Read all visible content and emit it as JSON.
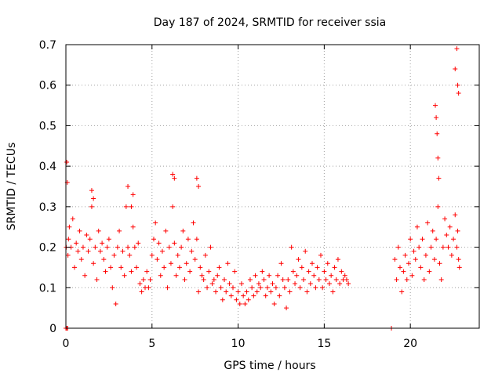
{
  "chart_data": {
    "type": "scatter",
    "title": "Day 187 of 2024, SRMTID for receiver ssia",
    "xlabel": "GPS time / hours",
    "ylabel": "SRMTID / TECUs",
    "xlim": [
      0,
      24
    ],
    "ylim": [
      0,
      0.7
    ],
    "xticks": [
      0,
      5,
      10,
      15,
      20
    ],
    "xtick_labels": [
      "0",
      "5",
      "10",
      "15",
      "20"
    ],
    "yticks": [
      0,
      0.1,
      0.2,
      0.3,
      0.4,
      0.5,
      0.6,
      0.7
    ],
    "ytick_labels": [
      "0",
      "0.1",
      "0.2",
      "0.3",
      "0.4",
      "0.5",
      "0.6",
      "0.7"
    ],
    "grid": true,
    "marker": "+",
    "color": "#ff0000",
    "series": [
      {
        "name": "SRMTID",
        "x": [
          0.02,
          0.05,
          0.08,
          0.12,
          0.15,
          0.2,
          0.3,
          0.4,
          0.5,
          0.6,
          0.7,
          0.8,
          0.9,
          1.0,
          1.1,
          1.2,
          1.3,
          1.4,
          1.5,
          1.6,
          1.7,
          1.8,
          1.9,
          2.0,
          2.1,
          2.2,
          2.3,
          2.4,
          2.5,
          2.6,
          2.7,
          2.8,
          2.9,
          3.0,
          3.1,
          3.2,
          3.3,
          3.4,
          3.5,
          3.6,
          3.7,
          3.8,
          3.9,
          4.0,
          4.1,
          4.2,
          4.3,
          4.4,
          4.5,
          4.6,
          4.7,
          4.8,
          4.9,
          5.0,
          5.1,
          5.2,
          5.3,
          5.4,
          5.5,
          5.6,
          5.7,
          5.8,
          5.9,
          6.0,
          6.1,
          6.2,
          6.3,
          6.4,
          6.5,
          6.6,
          6.7,
          6.8,
          6.9,
          7.0,
          7.1,
          7.2,
          7.3,
          7.4,
          7.5,
          7.6,
          7.7,
          7.8,
          7.9,
          8.0,
          8.1,
          8.2,
          8.3,
          8.4,
          8.5,
          8.6,
          8.7,
          8.8,
          8.9,
          9.0,
          9.1,
          9.2,
          9.3,
          9.4,
          9.5,
          9.6,
          9.7,
          9.8,
          9.9,
          10.0,
          10.1,
          10.2,
          10.3,
          10.4,
          10.5,
          10.6,
          10.7,
          10.8,
          10.9,
          11.0,
          11.1,
          11.2,
          11.3,
          11.4,
          11.5,
          11.6,
          11.7,
          11.8,
          11.9,
          12.0,
          12.1,
          12.2,
          12.3,
          12.4,
          12.5,
          12.6,
          12.7,
          12.8,
          12.9,
          13.0,
          13.1,
          13.2,
          13.3,
          13.4,
          13.5,
          13.6,
          13.7,
          13.8,
          13.9,
          14.0,
          14.1,
          14.2,
          14.3,
          14.4,
          14.5,
          14.6,
          14.7,
          14.8,
          14.9,
          15.0,
          15.1,
          15.2,
          15.3,
          15.4,
          15.5,
          15.6,
          15.7,
          15.8,
          15.9,
          16.0,
          16.1,
          16.2,
          16.3,
          16.4,
          18.9,
          19.1,
          19.2,
          19.3,
          19.4,
          19.5,
          19.6,
          19.7,
          19.8,
          19.9,
          20.0,
          20.1,
          20.2,
          20.3,
          20.4,
          20.5,
          20.6,
          20.7,
          20.8,
          20.9,
          21.0,
          21.1,
          21.2,
          21.3,
          21.4,
          21.5,
          21.6,
          21.7,
          21.8,
          21.9,
          22.0,
          22.1,
          22.2,
          22.3,
          22.4,
          22.5,
          22.6,
          22.7,
          22.75,
          22.8,
          22.85,
          0.0,
          0.05,
          0.1,
          1.5,
          1.6,
          3.6,
          3.8,
          3.9,
          6.2,
          6.3,
          7.6,
          7.7,
          21.45,
          21.5,
          21.55,
          21.6,
          21.65,
          22.6,
          22.7,
          22.75,
          22.8
        ],
        "y": [
          0.2,
          0.41,
          0.36,
          0.18,
          0.22,
          0.25,
          0.2,
          0.27,
          0.15,
          0.21,
          0.19,
          0.24,
          0.17,
          0.2,
          0.13,
          0.23,
          0.19,
          0.22,
          0.3,
          0.16,
          0.2,
          0.12,
          0.24,
          0.19,
          0.21,
          0.17,
          0.14,
          0.2,
          0.22,
          0.15,
          0.1,
          0.18,
          0.06,
          0.2,
          0.24,
          0.15,
          0.19,
          0.13,
          0.3,
          0.2,
          0.18,
          0.14,
          0.25,
          0.2,
          0.15,
          0.21,
          0.11,
          0.09,
          0.12,
          0.1,
          0.14,
          0.1,
          0.12,
          0.18,
          0.22,
          0.26,
          0.17,
          0.21,
          0.13,
          0.19,
          0.15,
          0.24,
          0.1,
          0.2,
          0.16,
          0.3,
          0.21,
          0.13,
          0.18,
          0.15,
          0.2,
          0.24,
          0.12,
          0.16,
          0.22,
          0.14,
          0.19,
          0.26,
          0.17,
          0.22,
          0.09,
          0.15,
          0.13,
          0.12,
          0.18,
          0.1,
          0.14,
          0.2,
          0.11,
          0.12,
          0.09,
          0.13,
          0.15,
          0.1,
          0.07,
          0.12,
          0.09,
          0.16,
          0.11,
          0.08,
          0.1,
          0.14,
          0.07,
          0.09,
          0.06,
          0.11,
          0.08,
          0.06,
          0.09,
          0.07,
          0.12,
          0.1,
          0.08,
          0.13,
          0.09,
          0.11,
          0.1,
          0.14,
          0.12,
          0.08,
          0.1,
          0.13,
          0.09,
          0.11,
          0.06,
          0.1,
          0.13,
          0.08,
          0.16,
          0.12,
          0.1,
          0.05,
          0.12,
          0.09,
          0.2,
          0.14,
          0.11,
          0.13,
          0.17,
          0.1,
          0.15,
          0.12,
          0.19,
          0.09,
          0.14,
          0.11,
          0.16,
          0.13,
          0.1,
          0.15,
          0.12,
          0.18,
          0.1,
          0.14,
          0.12,
          0.16,
          0.11,
          0.13,
          0.09,
          0.15,
          0.12,
          0.17,
          0.11,
          0.14,
          0.12,
          0.13,
          0.12,
          0.11,
          0.0,
          0.17,
          0.12,
          0.2,
          0.15,
          0.09,
          0.14,
          0.18,
          0.12,
          0.16,
          0.22,
          0.13,
          0.19,
          0.17,
          0.25,
          0.2,
          0.15,
          0.22,
          0.12,
          0.18,
          0.26,
          0.14,
          0.2,
          0.24,
          0.17,
          0.22,
          0.3,
          0.16,
          0.12,
          0.2,
          0.27,
          0.23,
          0.2,
          0.25,
          0.18,
          0.22,
          0.28,
          0.2,
          0.24,
          0.17,
          0.15,
          0.0,
          0.0,
          0.0,
          0.34,
          0.32,
          0.35,
          0.3,
          0.33,
          0.38,
          0.37,
          0.37,
          0.35,
          0.55,
          0.52,
          0.48,
          0.42,
          0.37,
          0.64,
          0.69,
          0.6,
          0.58
        ]
      }
    ]
  }
}
